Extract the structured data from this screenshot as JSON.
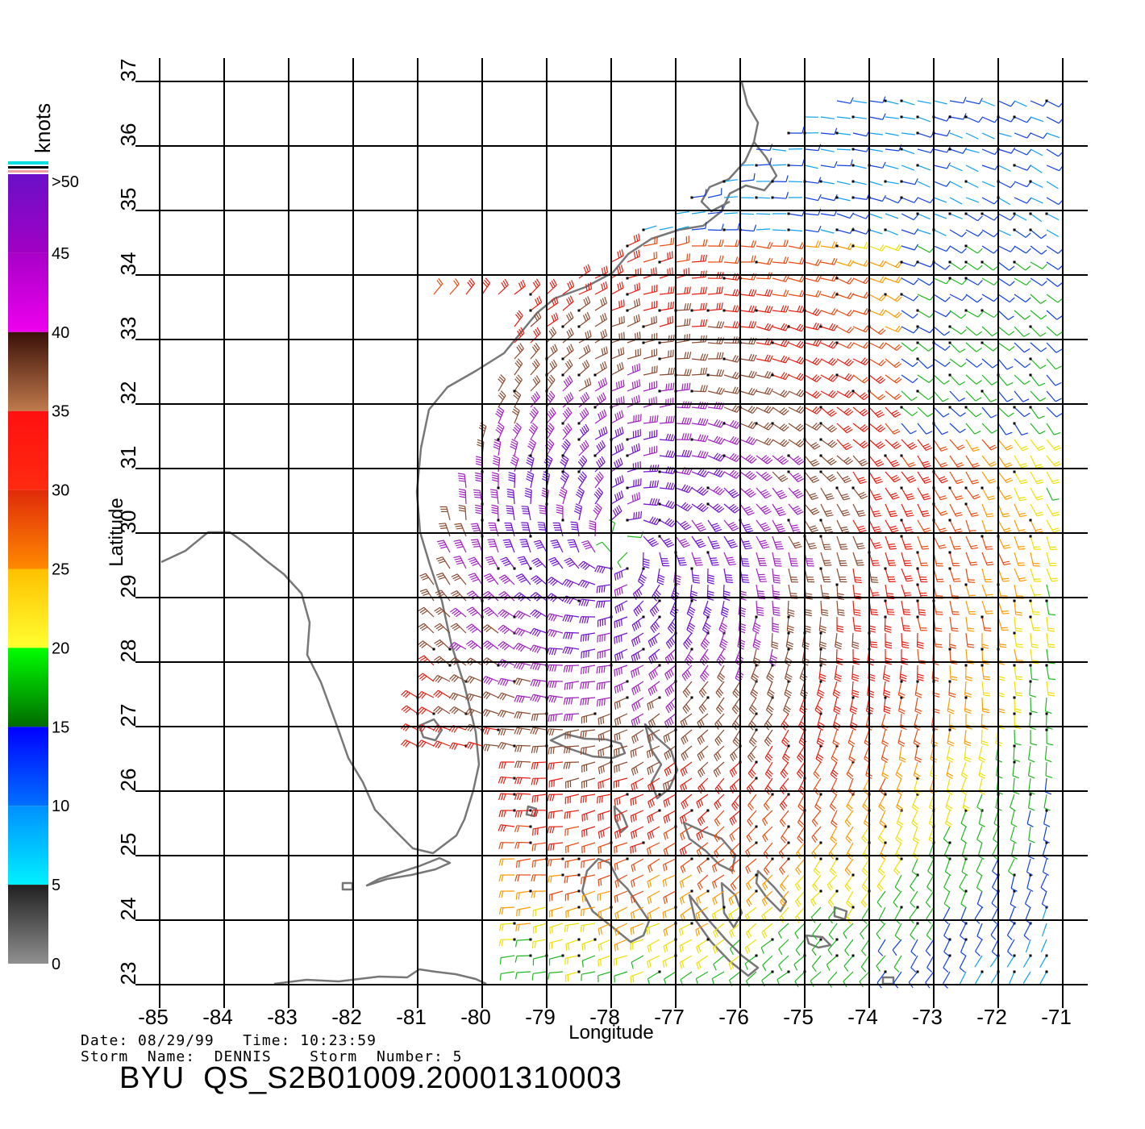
{
  "legend": {
    "unit": "knots",
    "top_label": ">50",
    "labels": [
      "45",
      "40",
      "35",
      "30",
      "25",
      "20",
      "15",
      "10",
      "5",
      "0"
    ],
    "bands": [
      {
        "from": 45,
        "to": 50,
        "top": "#6a10c8",
        "bottom": "#a200c4"
      },
      {
        "from": 40,
        "to": 45,
        "top": "#a800c8",
        "bottom": "#ee00ee"
      },
      {
        "from": 35,
        "to": 40,
        "top": "#3a1008",
        "bottom": "#c07a4c"
      },
      {
        "from": 30,
        "to": 35,
        "top": "#ff1010",
        "bottom": "#ff2a10"
      },
      {
        "from": 25,
        "to": 30,
        "top": "#e02a0a",
        "bottom": "#ff8a00"
      },
      {
        "from": 20,
        "to": 25,
        "top": "#ffc000",
        "bottom": "#ffff30"
      },
      {
        "from": 15,
        "to": 20,
        "top": "#00ff00",
        "bottom": "#006a00"
      },
      {
        "from": 10,
        "to": 15,
        "top": "#0000ff",
        "bottom": "#0070ff"
      },
      {
        "from": 5,
        "to": 10,
        "top": "#0090ff",
        "bottom": "#00f0ff"
      },
      {
        "from": 0,
        "to": 5,
        "top": "#202020",
        "bottom": "#909090"
      }
    ]
  },
  "chart_data": {
    "type": "wind-vector-map",
    "xlabel": "Longitude",
    "ylabel": "Latitude",
    "xlim": [
      -85,
      -71
    ],
    "ylim": [
      23,
      37
    ],
    "x_ticks": [
      "-85",
      "-84",
      "-83",
      "-82",
      "-81",
      "-80",
      "-79",
      "-78",
      "-77",
      "-76",
      "-75",
      "-74",
      "-73",
      "-72",
      "-71"
    ],
    "y_ticks": [
      "23",
      "24",
      "25",
      "26",
      "27",
      "28",
      "29",
      "30",
      "31",
      "32",
      "33",
      "34",
      "35",
      "36",
      "37"
    ],
    "storm_center": {
      "lon": -77.8,
      "lat": 29.8
    },
    "grid": true
  },
  "footer": {
    "line1": "Date: 08/29/99   Time: 10:23:59",
    "line2": "Storm  Name:  DENNIS    Storm  Number: 5",
    "product": "BYU  QS_S2B01009.20001310003"
  }
}
